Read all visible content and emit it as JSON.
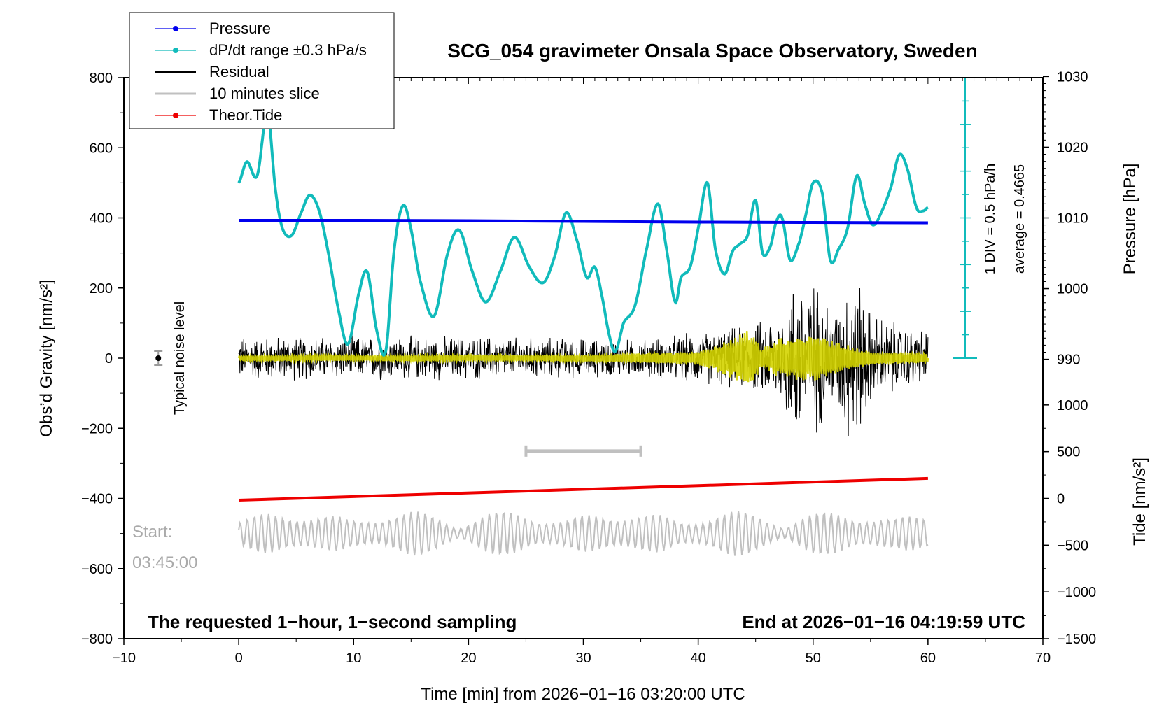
{
  "chart_data": {
    "type": "line",
    "title": "SCG_054 gravimeter Onsala Space Observatory, Sweden",
    "xlabel": "Time [min] from 2026−01−16 03:20:00 UTC",
    "ylabel_left": "Obs’d Gravity [nm/s²]",
    "ylabel_right_pressure": "Pressure [hPa]",
    "ylabel_right_tide": "Tide [nm/s²]",
    "xlim": [
      -10,
      70
    ],
    "ylim": [
      -800,
      800
    ],
    "x_ticks": [
      -10,
      0,
      10,
      20,
      30,
      40,
      50,
      60,
      70
    ],
    "x_tick_labels": [
      "−10",
      "0",
      "10",
      "20",
      "30",
      "40",
      "50",
      "60",
      "70"
    ],
    "y_ticks": [
      -800,
      -600,
      -400,
      -200,
      0,
      200,
      400,
      600,
      800
    ],
    "y_tick_labels": [
      "−800",
      "−600",
      "−400",
      "−200",
      "0",
      "200",
      "400",
      "600",
      "800"
    ],
    "pressure_axis": {
      "ticks": [
        990,
        1000,
        1010,
        1020,
        1030
      ],
      "tick_labels": [
        "990",
        "1000",
        "1010",
        "1020",
        "1030"
      ],
      "map": {
        "value_at_gravity_400": 1010,
        "hpa_per_nm": 0.0496
      }
    },
    "tide_axis": {
      "ticks": [
        -1500,
        -1000,
        -500,
        0,
        500,
        1000
      ],
      "tick_labels": [
        "−1500",
        "−1000",
        "−500",
        "0",
        "500",
        "1000"
      ],
      "map": {
        "tide_at_grav_minus_800": -1500,
        "tide_at_grav_minus_400": 0
      }
    },
    "legend": {
      "placement": "top-left",
      "entries": [
        {
          "label": "Pressure",
          "color": "#0000ee",
          "marker": true
        },
        {
          "label": "dP/dt range ±0.3 hPa/s",
          "color": "#11bbbb",
          "marker": true
        },
        {
          "label": "Residual",
          "color": "#000000",
          "marker": false
        },
        {
          "label": "10 minutes slice",
          "color": "#c0c0c0",
          "marker": false
        },
        {
          "label": "Theor.Tide",
          "color": "#ee0000",
          "marker": true
        }
      ]
    },
    "series": [
      {
        "name": "Pressure",
        "color": "#0000ee",
        "x": [
          0,
          10,
          20,
          30,
          40,
          50,
          60
        ],
        "y": [
          393,
          393,
          392,
          390,
          388,
          387,
          386
        ]
      },
      {
        "name": "dP/dt",
        "color": "#11bbbb",
        "x": [
          0,
          0.7,
          1.6,
          2.5,
          3.2,
          3.8,
          4.6,
          5.5,
          6.2,
          7.0,
          7.8,
          8.6,
          9.5,
          10.5,
          11.2,
          12.0,
          12.8,
          13.5,
          14.2,
          14.8,
          15.8,
          17.0,
          18.2,
          19.2,
          20.3,
          21.5,
          22.8,
          24.0,
          25.3,
          26.5,
          27.5,
          28.5,
          29.5,
          30.3,
          31.0,
          31.6,
          32.3,
          32.8,
          33.5,
          34.5,
          35.5,
          36.5,
          37.3,
          38.0,
          38.5,
          39.3,
          40.0,
          40.8,
          41.5,
          42.3,
          43.0,
          43.6,
          44.3,
          45.0,
          45.6,
          46.3,
          46.8,
          47.3,
          48.0,
          48.8,
          49.3,
          50.0,
          50.8,
          51.5,
          52.2,
          53.0,
          53.8,
          54.5,
          55.2,
          56.0,
          56.8,
          57.5,
          58.2,
          59.0,
          59.6,
          60.0
        ],
        "y": [
          500,
          560,
          520,
          700,
          480,
          370,
          350,
          420,
          465,
          420,
          300,
          150,
          40,
          190,
          245,
          80,
          20,
          300,
          430,
          395,
          220,
          120,
          300,
          365,
          250,
          160,
          250,
          345,
          260,
          215,
          290,
          415,
          330,
          230,
          260,
          180,
          60,
          20,
          100,
          150,
          310,
          440,
          300,
          160,
          230,
          260,
          370,
          500,
          310,
          240,
          305,
          325,
          350,
          450,
          300,
          320,
          390,
          400,
          280,
          330,
          400,
          500,
          470,
          280,
          310,
          370,
          520,
          440,
          380,
          420,
          490,
          580,
          540,
          430,
          420,
          430
        ]
      },
      {
        "name": "Residual",
        "color": "#000000",
        "amplitude_envelope": {
          "x": [
            0,
            20,
            35,
            42,
            45,
            47,
            48.5,
            50,
            52,
            53.5,
            55,
            58,
            60
          ],
          "amp": [
            70,
            70,
            60,
            90,
            110,
            150,
            270,
            250,
            160,
            300,
            150,
            100,
            90
          ]
        }
      },
      {
        "name": "Filtered",
        "color": "#d4d400",
        "amplitude_envelope": {
          "x": [
            0,
            30,
            40,
            43.5,
            44.5,
            45.5,
            47,
            50,
            53,
            55,
            60
          ],
          "amp": [
            8,
            10,
            20,
            70,
            90,
            30,
            60,
            70,
            40,
            20,
            15
          ]
        }
      },
      {
        "name": "Theor.Tide",
        "color": "#ee0000",
        "x": [
          0,
          60
        ],
        "y": [
          -405,
          -343
        ]
      },
      {
        "name": "10 minutes slice",
        "color": "#c0c0c0",
        "center": -500,
        "x_range": [
          0,
          60
        ],
        "amplitude": 50
      }
    ],
    "slice_bracket": {
      "x": [
        25,
        35
      ],
      "y": -265
    },
    "noise_level": {
      "label": "Typical noise level",
      "x": -7,
      "y": 0,
      "err": 20
    },
    "dpdt_scale": {
      "label": "1 DIV = 0.5 hPa/h",
      "average_label": "average = 0.4665"
    },
    "annotations": {
      "start_label": "Start:",
      "start_time": "03:45:00",
      "footer_left": "The requested 1−hour, 1−second sampling",
      "footer_right": "End at 2026−01−16 04:19:59 UTC"
    }
  }
}
